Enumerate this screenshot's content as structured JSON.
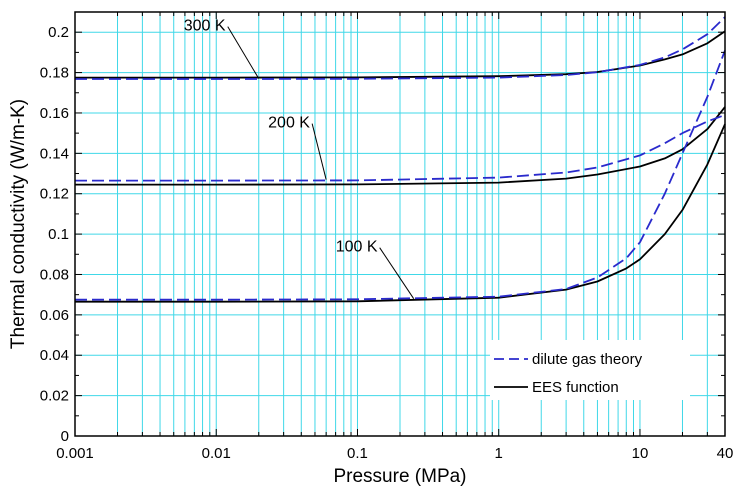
{
  "chart_data": {
    "type": "line",
    "xscale": "log",
    "xlim": [
      0.001,
      40
    ],
    "ylim": [
      0,
      0.21
    ],
    "xlabel": "Pressure (MPa)",
    "ylabel": "Thermal conductivity (W/m-K)",
    "grid": "on (cyan, minor x gridlines)",
    "xticks": [
      0.001,
      0.01,
      0.1,
      1,
      10,
      40
    ],
    "xtick_labels": [
      "0.001",
      "0.01",
      "0.1",
      "1",
      "10",
      "40"
    ],
    "yticks": [
      0,
      0.02,
      0.04,
      0.06,
      0.08,
      0.1,
      0.12,
      0.14,
      0.16,
      0.18,
      0.2
    ],
    "ytick_labels": [
      "0",
      "0.02",
      "0.04",
      "0.06",
      "0.08",
      "0.1",
      "0.12",
      "0.14",
      "0.16",
      "0.18",
      "0.2"
    ],
    "legend": {
      "position": "bottom-right",
      "entries": [
        {
          "label": "dilute gas theory",
          "style": "dashed",
          "color": "#2a2acc"
        },
        {
          "label": "EES function",
          "style": "solid",
          "color": "#000000"
        }
      ]
    },
    "annotations": [
      {
        "text": "300 K",
        "points_to": [
          0.02,
          0.177
        ]
      },
      {
        "text": "200 K",
        "points_to": [
          0.06,
          0.127
        ]
      },
      {
        "text": "100 K",
        "points_to": [
          0.25,
          0.068
        ]
      }
    ],
    "series": [
      {
        "group": "300 K",
        "legend_entry": "EES function",
        "style": "solid",
        "color": "#000000",
        "x": [
          0.001,
          0.01,
          0.1,
          1,
          3,
          5,
          10,
          15,
          20,
          30,
          40
        ],
        "y": [
          0.1775,
          0.1775,
          0.1776,
          0.1782,
          0.1792,
          0.1803,
          0.1835,
          0.1865,
          0.189,
          0.1945,
          0.2005
        ]
      },
      {
        "group": "300 K",
        "legend_entry": "dilute gas theory",
        "style": "dashed",
        "color": "#2a2acc",
        "x": [
          0.001,
          0.01,
          0.1,
          1,
          3,
          5,
          10,
          15,
          20,
          30,
          40
        ],
        "y": [
          0.1768,
          0.1768,
          0.1769,
          0.1775,
          0.1788,
          0.1802,
          0.1838,
          0.1875,
          0.1915,
          0.199,
          0.2075
        ]
      },
      {
        "group": "200 K",
        "legend_entry": "EES function",
        "style": "solid",
        "color": "#000000",
        "x": [
          0.001,
          0.01,
          0.1,
          1,
          3,
          5,
          10,
          15,
          20,
          30,
          40
        ],
        "y": [
          0.1245,
          0.1245,
          0.1246,
          0.1255,
          0.1275,
          0.1295,
          0.1335,
          0.1375,
          0.142,
          0.152,
          0.163
        ]
      },
      {
        "group": "200 K",
        "legend_entry": "dilute gas theory",
        "style": "dashed",
        "color": "#2a2acc",
        "x": [
          0.001,
          0.01,
          0.1,
          1,
          3,
          5,
          10,
          15,
          20,
          30,
          40
        ],
        "y": [
          0.1265,
          0.1265,
          0.1266,
          0.128,
          0.1305,
          0.133,
          0.139,
          0.145,
          0.15,
          0.1558,
          0.159
        ]
      },
      {
        "group": "100 K",
        "legend_entry": "EES function",
        "style": "solid",
        "color": "#000000",
        "x": [
          0.001,
          0.01,
          0.1,
          1,
          3,
          5,
          8,
          10,
          15,
          20,
          30,
          40
        ],
        "y": [
          0.0665,
          0.0665,
          0.0667,
          0.0685,
          0.0725,
          0.0765,
          0.083,
          0.0875,
          0.1,
          0.112,
          0.1345,
          0.1545
        ]
      },
      {
        "group": "100 K",
        "legend_entry": "dilute gas theory",
        "style": "dashed",
        "color": "#2a2acc",
        "x": [
          0.001,
          0.01,
          0.1,
          1,
          3,
          5,
          8,
          10,
          15,
          20,
          30,
          40
        ],
        "y": [
          0.0675,
          0.0675,
          0.0677,
          0.069,
          0.0728,
          0.0785,
          0.088,
          0.096,
          0.12,
          0.14,
          0.168,
          0.191
        ]
      }
    ]
  }
}
